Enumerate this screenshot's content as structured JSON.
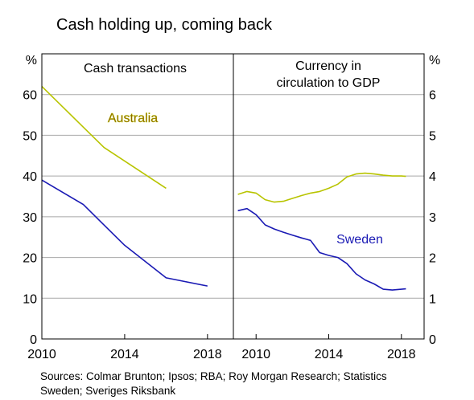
{
  "title": "Cash holding up, coming back",
  "sources": "Sources:   Colmar Brunton; Ipsos; RBA; Roy Morgan Research; Statistics Sweden; Sveriges Riksbank",
  "colors": {
    "australia": "#b8c400",
    "sweden": "#1a1ab4",
    "grid": "#a8a8a8",
    "frame": "#000000"
  },
  "chart_data": [
    {
      "type": "line",
      "title": "Cash transactions",
      "ylabel": "%",
      "xlim": [
        2010,
        2019.25
      ],
      "ylim": [
        0,
        70
      ],
      "yticks": [
        0,
        10,
        20,
        30,
        40,
        50,
        60
      ],
      "xticks": [
        2010,
        2014,
        2018
      ],
      "series": [
        {
          "name": "Australia",
          "color": "#b8c400",
          "x": [
            2010,
            2013,
            2016
          ],
          "y": [
            62,
            47,
            37
          ]
        },
        {
          "name": "",
          "color": "#1a1ab4",
          "x": [
            2010,
            2012,
            2014,
            2016,
            2018
          ],
          "y": [
            39,
            33,
            23,
            15,
            13
          ]
        }
      ]
    },
    {
      "type": "line",
      "title_lines": [
        "Currency in",
        "circulation to GDP"
      ],
      "ylabel": "%",
      "xlim": [
        2008.75,
        2019.25
      ],
      "ylim": [
        0,
        7
      ],
      "yticks": [
        0,
        1,
        2,
        3,
        4,
        5,
        6
      ],
      "xticks": [
        2010,
        2014,
        2018
      ],
      "series": [
        {
          "name": "",
          "color": "#b8c400",
          "x": [
            2009.0,
            2009.5,
            2010.0,
            2010.5,
            2011.0,
            2011.5,
            2012.0,
            2012.5,
            2013.0,
            2013.5,
            2014.0,
            2014.5,
            2015.0,
            2015.5,
            2016.0,
            2016.5,
            2017.0,
            2017.5,
            2018.0,
            2018.25
          ],
          "y": [
            3.55,
            3.62,
            3.58,
            3.42,
            3.36,
            3.38,
            3.45,
            3.52,
            3.58,
            3.62,
            3.7,
            3.8,
            3.98,
            4.05,
            4.07,
            4.05,
            4.02,
            4.0,
            4.0,
            3.99
          ]
        },
        {
          "name": "Sweden",
          "color": "#1a1ab4",
          "x": [
            2009.0,
            2009.5,
            2010.0,
            2010.5,
            2011.0,
            2011.5,
            2012.0,
            2012.5,
            2013.0,
            2013.5,
            2014.0,
            2014.5,
            2015.0,
            2015.5,
            2016.0,
            2016.5,
            2017.0,
            2017.5,
            2018.0,
            2018.25
          ],
          "y": [
            3.15,
            3.2,
            3.05,
            2.8,
            2.7,
            2.62,
            2.55,
            2.48,
            2.42,
            2.12,
            2.05,
            2.0,
            1.85,
            1.6,
            1.45,
            1.35,
            1.22,
            1.2,
            1.22,
            1.23
          ]
        }
      ]
    }
  ],
  "labels": {
    "australia": "Australia",
    "sweden": "Sweden"
  }
}
